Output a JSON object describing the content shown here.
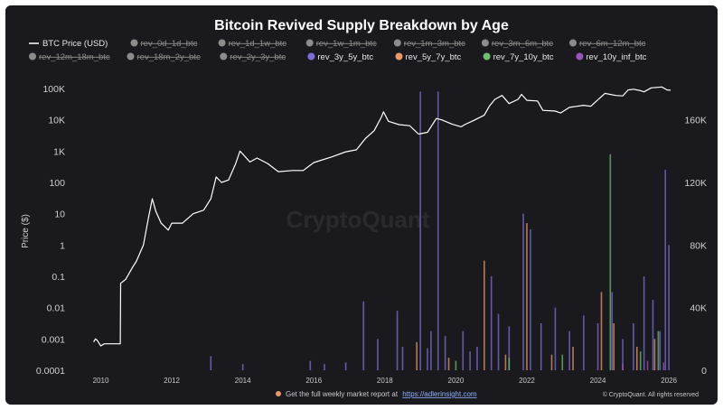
{
  "chart_data": {
    "type": "line",
    "title": "Bitcoin Revived Supply Breakdown by Age",
    "ylabel": "Price ($)",
    "y_scale": "log",
    "ylim": [
      0.0001,
      100000
    ],
    "y_ticks": [
      "0.0001",
      "0.001",
      "0.01",
      "0.1",
      "1",
      "10",
      "100",
      "1K",
      "10K",
      "100K"
    ],
    "y2_ticks": [
      "0",
      "40K",
      "80K",
      "120K",
      "160K"
    ],
    "y2lim": [
      0,
      180000
    ],
    "x_ticks": [
      "2010",
      "2012",
      "2014",
      "2016",
      "2018",
      "2020",
      "2022",
      "2024",
      "2026"
    ],
    "legend_position": "top",
    "watermark": "CryptoQuant",
    "legend": [
      {
        "name": "BTC Price (USD)",
        "color": "#ffffff",
        "marker": "line",
        "active": true
      },
      {
        "name": "rev_0d_1d_btc",
        "color": "#8c8c8c",
        "active": false
      },
      {
        "name": "rev_1d_1w_btc",
        "color": "#8c8c8c",
        "active": false
      },
      {
        "name": "rev_1w_1m_btc",
        "color": "#8c8c8c",
        "active": false
      },
      {
        "name": "rev_1m_3m_btc",
        "color": "#8c8c8c",
        "active": false
      },
      {
        "name": "rev_3m_6m_btc",
        "color": "#8c8c8c",
        "active": false
      },
      {
        "name": "rev_6m_12m_btc",
        "color": "#8c8c8c",
        "active": false
      },
      {
        "name": "rev_12m_18m_btc",
        "color": "#8c8c8c",
        "active": false
      },
      {
        "name": "rev_18m_2y_btc",
        "color": "#8c8c8c",
        "active": false
      },
      {
        "name": "rev_2y_3y_btc",
        "color": "#8c8c8c",
        "active": false
      },
      {
        "name": "rev_3y_5y_btc",
        "color": "#7b6fd6",
        "active": true
      },
      {
        "name": "rev_5y_7y_btc",
        "color": "#e8996a",
        "active": true
      },
      {
        "name": "rev_7y_10y_btc",
        "color": "#6fbf6f",
        "active": true
      },
      {
        "name": "rev_10y_inf_btc",
        "color": "#9a55b8",
        "active": true
      }
    ],
    "series": [
      {
        "name": "BTC Price (USD)",
        "axis": "left",
        "color": "#ffffff",
        "points": [
          [
            2009.8,
            0.0008
          ],
          [
            2009.85,
            0.001
          ],
          [
            2009.9,
            0.0009
          ],
          [
            2010.0,
            0.0006
          ],
          [
            2010.1,
            0.0007
          ],
          [
            2010.3,
            0.0007
          ],
          [
            2010.55,
            0.0007
          ],
          [
            2010.56,
            0.06
          ],
          [
            2010.7,
            0.08
          ],
          [
            2010.9,
            0.2
          ],
          [
            2011.0,
            0.3
          ],
          [
            2011.2,
            1.0
          ],
          [
            2011.35,
            8
          ],
          [
            2011.45,
            30
          ],
          [
            2011.55,
            12
          ],
          [
            2011.7,
            5
          ],
          [
            2011.9,
            3
          ],
          [
            2012.0,
            5
          ],
          [
            2012.3,
            5
          ],
          [
            2012.6,
            10
          ],
          [
            2012.9,
            13
          ],
          [
            2013.1,
            30
          ],
          [
            2013.25,
            150
          ],
          [
            2013.4,
            100
          ],
          [
            2013.6,
            120
          ],
          [
            2013.8,
            400
          ],
          [
            2013.92,
            1000
          ],
          [
            2014.0,
            800
          ],
          [
            2014.2,
            450
          ],
          [
            2014.4,
            600
          ],
          [
            2014.7,
            400
          ],
          [
            2015.0,
            220
          ],
          [
            2015.4,
            240
          ],
          [
            2015.7,
            240
          ],
          [
            2016.0,
            430
          ],
          [
            2016.5,
            650
          ],
          [
            2016.9,
            950
          ],
          [
            2017.2,
            1100
          ],
          [
            2017.45,
            2500
          ],
          [
            2017.7,
            4500
          ],
          [
            2017.9,
            12000
          ],
          [
            2017.96,
            18000
          ],
          [
            2018.1,
            9000
          ],
          [
            2018.4,
            7000
          ],
          [
            2018.7,
            6500
          ],
          [
            2018.95,
            3500
          ],
          [
            2019.2,
            4000
          ],
          [
            2019.45,
            11000
          ],
          [
            2019.6,
            10000
          ],
          [
            2019.9,
            7200
          ],
          [
            2020.15,
            6000
          ],
          [
            2020.25,
            7000
          ],
          [
            2020.5,
            9500
          ],
          [
            2020.8,
            14000
          ],
          [
            2020.95,
            28000
          ],
          [
            2021.1,
            45000
          ],
          [
            2021.3,
            60000
          ],
          [
            2021.5,
            33000
          ],
          [
            2021.75,
            45000
          ],
          [
            2021.85,
            65000
          ],
          [
            2022.0,
            42000
          ],
          [
            2022.3,
            40000
          ],
          [
            2022.45,
            20000
          ],
          [
            2022.8,
            19000
          ],
          [
            2022.95,
            16500
          ],
          [
            2023.2,
            25000
          ],
          [
            2023.6,
            29000
          ],
          [
            2023.8,
            27000
          ],
          [
            2024.0,
            44000
          ],
          [
            2024.2,
            70000
          ],
          [
            2024.5,
            60000
          ],
          [
            2024.7,
            58000
          ],
          [
            2024.85,
            90000
          ],
          [
            2025.0,
            95000
          ],
          [
            2025.2,
            85000
          ],
          [
            2025.3,
            78000
          ],
          [
            2025.5,
            105000
          ],
          [
            2025.8,
            112000
          ],
          [
            2025.95,
            90000
          ],
          [
            2026.05,
            88000
          ]
        ]
      },
      {
        "name": "rev_3y_5y_btc",
        "axis": "right",
        "color": "#7b6fd6",
        "spikes": [
          [
            2013.1,
            9000
          ],
          [
            2014.0,
            4000
          ],
          [
            2015.9,
            6000
          ],
          [
            2016.3,
            4000
          ],
          [
            2016.9,
            5000
          ],
          [
            2017.4,
            44000
          ],
          [
            2017.8,
            20000
          ],
          [
            2018.35,
            38000
          ],
          [
            2018.5,
            15000
          ],
          [
            2019.0,
            178000
          ],
          [
            2019.2,
            14000
          ],
          [
            2019.3,
            25000
          ],
          [
            2019.5,
            178000
          ],
          [
            2019.7,
            22000
          ],
          [
            2020.2,
            25000
          ],
          [
            2020.4,
            12000
          ],
          [
            2020.6,
            15000
          ],
          [
            2021.0,
            60000
          ],
          [
            2021.2,
            36000
          ],
          [
            2021.5,
            28000
          ],
          [
            2021.9,
            100000
          ],
          [
            2022.1,
            90000
          ],
          [
            2022.4,
            30000
          ],
          [
            2022.8,
            40000
          ],
          [
            2023.2,
            25000
          ],
          [
            2023.6,
            35000
          ],
          [
            2024.0,
            30000
          ],
          [
            2024.4,
            50000
          ],
          [
            2024.7,
            20000
          ],
          [
            2025.0,
            30000
          ],
          [
            2025.3,
            60000
          ],
          [
            2025.55,
            45000
          ],
          [
            2025.75,
            25000
          ],
          [
            2025.9,
            128000
          ],
          [
            2026.0,
            80000
          ]
        ]
      },
      {
        "name": "rev_5y_7y_btc",
        "axis": "right",
        "color": "#e8996a",
        "spikes": [
          [
            2018.9,
            18000
          ],
          [
            2019.8,
            8000
          ],
          [
            2020.8,
            70000
          ],
          [
            2021.4,
            10000
          ],
          [
            2022.0,
            94000
          ],
          [
            2022.7,
            10000
          ],
          [
            2023.3,
            15000
          ],
          [
            2024.1,
            50000
          ],
          [
            2024.45,
            30000
          ],
          [
            2025.1,
            15000
          ],
          [
            2025.6,
            20000
          ]
        ]
      },
      {
        "name": "rev_7y_10y_btc",
        "axis": "right",
        "color": "#6fbf6f",
        "spikes": [
          [
            2020.0,
            6000
          ],
          [
            2021.5,
            8000
          ],
          [
            2023.0,
            10000
          ],
          [
            2024.35,
            138000
          ],
          [
            2025.2,
            12000
          ],
          [
            2025.7,
            25000
          ]
        ]
      },
      {
        "name": "rev_10y_inf_btc",
        "axis": "right",
        "color": "#9a55b8",
        "spikes": [
          [
            2024.7,
            4000
          ],
          [
            2025.4,
            6000
          ],
          [
            2025.85,
            5000
          ]
        ]
      }
    ]
  },
  "footer": {
    "promo_prefix": "Get the full weekly market report at",
    "promo_link": "https://adlerinsight.com",
    "copyright": "© CryptoQuant. All rights reserved"
  }
}
